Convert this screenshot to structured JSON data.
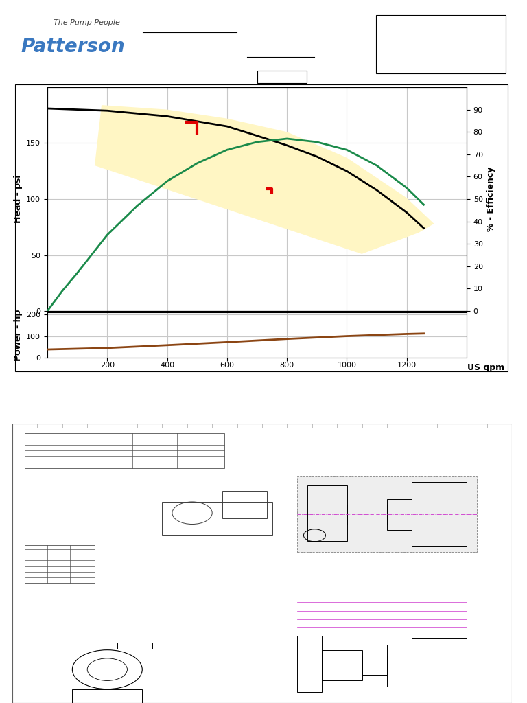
{
  "header": {
    "logo": "Patterson",
    "tagline": "The Pump People"
  },
  "chart_data": [
    {
      "type": "line",
      "ylabel": "Head - psi",
      "y2label": "% - Efficiency",
      "xlim": [
        0,
        1400
      ],
      "xticks": [
        200,
        400,
        600,
        800,
        1000,
        1200
      ],
      "ylim": [
        0,
        200
      ],
      "yticks": [
        0,
        50,
        100,
        150
      ],
      "y2lim": [
        0,
        100
      ],
      "y2ticks": [
        0,
        10,
        20,
        30,
        40,
        50,
        60,
        70,
        80,
        90
      ],
      "grid": true,
      "tick_labels": "y",
      "series": [
        {
          "type": "fill",
          "color": "#fff6c4",
          "x": [
            181,
            400,
            600,
            800,
            1000,
            1200,
            1291,
            1240,
            1050,
            158
          ],
          "values": [
            184,
            180,
            172,
            160,
            137,
            101,
            78,
            70,
            51,
            130
          ]
        },
        {
          "type": "line",
          "color": "#000000",
          "line_style": "solid",
          "x": [
            0,
            200,
            400,
            600,
            743,
            800,
            900,
            1000,
            1100,
            1200,
            1257
          ],
          "values": [
            181,
            179,
            174,
            165,
            153,
            148,
            138,
            125,
            108,
            88,
            74
          ]
        },
        {
          "type": "line",
          "color": "#1a8a4a",
          "line_style": "solid",
          "axis": "y2",
          "x": [
            0,
            50,
            100,
            200,
            300,
            400,
            500,
            600,
            700,
            800,
            900,
            1000,
            1100,
            1200,
            1257
          ],
          "values": [
            0,
            9,
            17,
            34,
            47,
            58,
            66,
            72,
            75.5,
            77,
            75.5,
            72,
            65,
            55,
            47.5
          ]
        },
        {
          "type": "scatter",
          "color": "#e00000",
          "marker": "corner",
          "x": [
            500,
            750
          ],
          "values": [
            169,
            109
          ]
        }
      ]
    },
    {
      "type": "line",
      "ylabel": "Power - hp",
      "xlabel": "US gpm",
      "xlim": [
        0,
        1400
      ],
      "xticks": [
        200,
        400,
        600,
        800,
        1000,
        1200
      ],
      "ylim": [
        0,
        210
      ],
      "yticks": [
        0,
        100,
        200
      ],
      "grid": true,
      "series": [
        {
          "type": "line",
          "color": "#8b4513",
          "line_style": "solid",
          "x": [
            0,
            200,
            400,
            600,
            800,
            1000,
            1200,
            1257
          ],
          "values": [
            38,
            45,
            58,
            72,
            87,
            100,
            110,
            112
          ]
        }
      ]
    }
  ]
}
